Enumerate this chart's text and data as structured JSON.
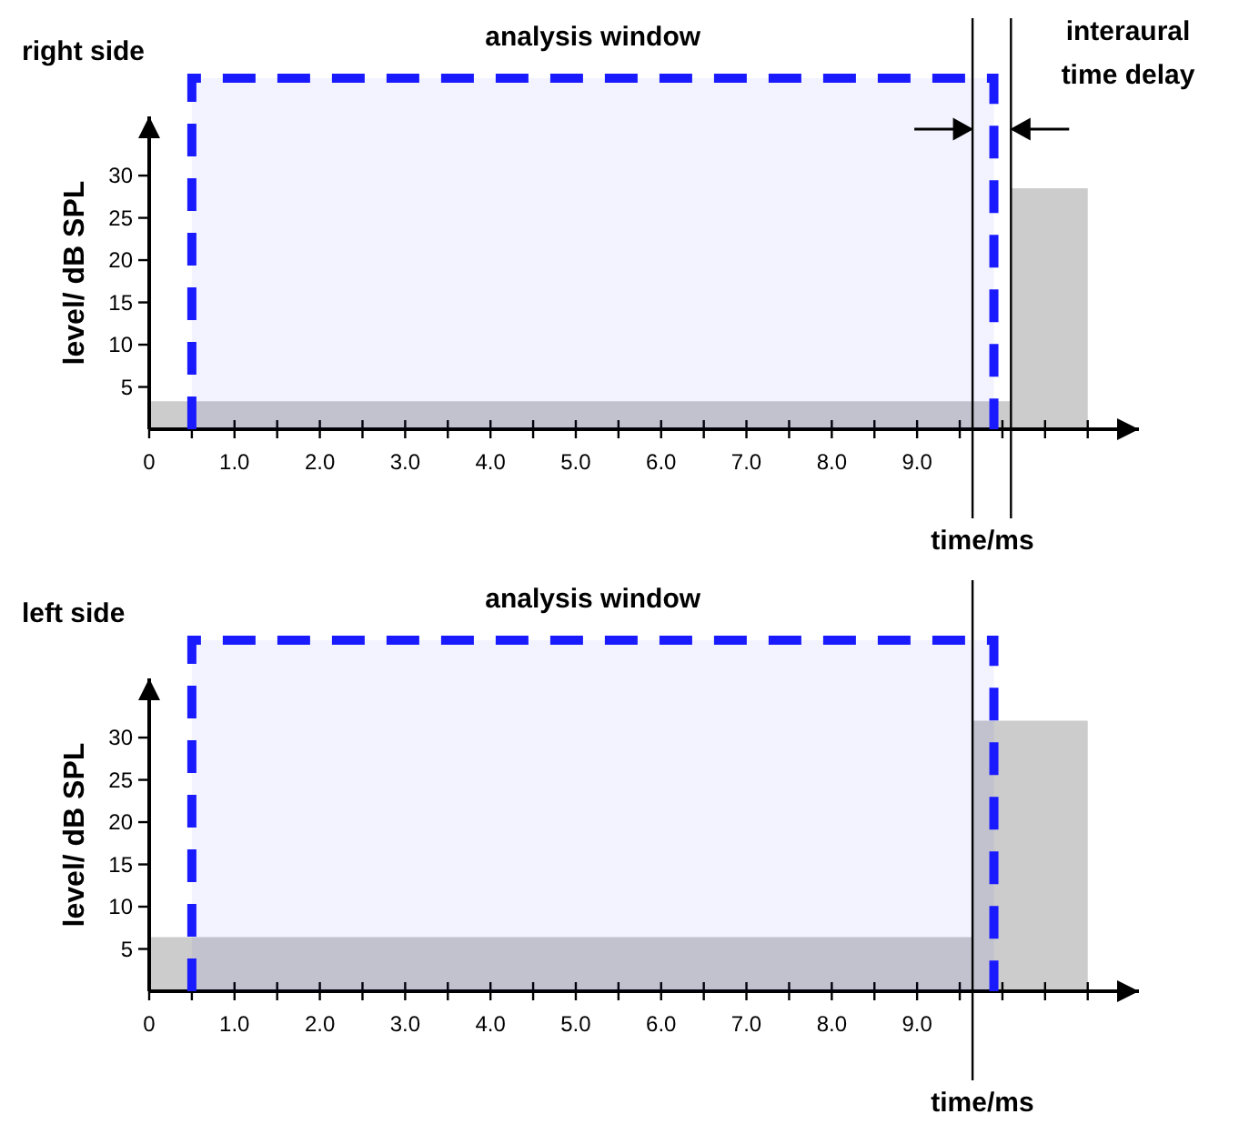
{
  "chart_data": [
    {
      "type": "area",
      "title": "right side",
      "xlabel": "time/ms",
      "ylabel": "level/ dB SPL",
      "x": [
        0,
        10.1,
        10.1,
        11
      ],
      "series": [
        {
          "color": "#cccccc",
          "values": [
            3.3,
            3.3,
            28.5,
            28.5
          ]
        }
      ],
      "xlim": [
        0,
        11.6
      ],
      "ylim": [
        0,
        37
      ],
      "xticks": [
        0,
        {
          "value": 0.5,
          "label": null
        },
        {
          "value": 1,
          "label": "1.0"
        },
        {
          "value": 1.5,
          "label": null
        },
        {
          "value": 2,
          "label": "2.0"
        },
        {
          "value": 2.5,
          "label": null
        },
        {
          "value": 3,
          "label": "3.0"
        },
        {
          "value": 3.5,
          "label": null
        },
        {
          "value": 4,
          "label": "4.0"
        },
        {
          "value": 4.5,
          "label": null
        },
        {
          "value": 5,
          "label": "5.0"
        },
        {
          "value": 5.5,
          "label": null
        },
        {
          "value": 6,
          "label": "6.0"
        },
        {
          "value": 6.5,
          "label": null
        },
        {
          "value": 7,
          "label": "7.0"
        },
        {
          "value": 7.5,
          "label": null
        },
        {
          "value": 8,
          "label": "8.0"
        },
        {
          "value": 8.5,
          "label": null
        },
        {
          "value": 9,
          "label": "9.0"
        },
        {
          "value": 9.5,
          "label": null
        },
        {
          "value": 10,
          "label": null
        },
        {
          "value": 10.5,
          "label": null
        },
        {
          "value": 11,
          "label": null
        }
      ],
      "yticks": [
        5,
        10,
        15,
        20,
        25,
        30
      ],
      "bands": [
        {
          "axis": "x",
          "from": 0.5,
          "to": 9.9,
          "label": "analysis window",
          "color": "#1a1aff"
        }
      ],
      "ref_lines": [
        {
          "axis": "x",
          "value": 9.65,
          "label": null,
          "color": "#000000"
        },
        {
          "axis": "x",
          "value": 10.1,
          "label": null,
          "color": "#000000"
        }
      ],
      "annotations": [
        "interaural time delay"
      ]
    },
    {
      "type": "area",
      "title": "left side",
      "xlabel": "time/ms",
      "ylabel": "level/ dB SPL",
      "x": [
        0,
        9.65,
        9.65,
        11
      ],
      "series": [
        {
          "color": "#cccccc",
          "values": [
            6.4,
            6.4,
            32,
            32
          ]
        }
      ],
      "xlim": [
        0,
        11.6
      ],
      "ylim": [
        0,
        37
      ],
      "xticks": [
        0,
        {
          "value": 0.5,
          "label": null
        },
        {
          "value": 1,
          "label": "1.0"
        },
        {
          "value": 1.5,
          "label": null
        },
        {
          "value": 2,
          "label": "2.0"
        },
        {
          "value": 2.5,
          "label": null
        },
        {
          "value": 3,
          "label": "3.0"
        },
        {
          "value": 3.5,
          "label": null
        },
        {
          "value": 4,
          "label": "4.0"
        },
        {
          "value": 4.5,
          "label": null
        },
        {
          "value": 5,
          "label": "5.0"
        },
        {
          "value": 5.5,
          "label": null
        },
        {
          "value": 6,
          "label": "6.0"
        },
        {
          "value": 6.5,
          "label": null
        },
        {
          "value": 7,
          "label": "7.0"
        },
        {
          "value": 7.5,
          "label": null
        },
        {
          "value": 8,
          "label": "8.0"
        },
        {
          "value": 8.5,
          "label": null
        },
        {
          "value": 9,
          "label": "9.0"
        },
        {
          "value": 9.5,
          "label": null
        },
        {
          "value": 10,
          "label": null
        },
        {
          "value": 10.5,
          "label": null
        },
        {
          "value": 11,
          "label": null
        }
      ],
      "yticks": [
        5,
        10,
        15,
        20,
        25,
        30
      ],
      "bands": [
        {
          "axis": "x",
          "from": 0.5,
          "to": 9.9,
          "label": "analysis window",
          "color": "#1a1aff"
        }
      ],
      "ref_lines": [
        {
          "axis": "x",
          "value": 9.65,
          "label": null,
          "color": "#000000"
        }
      ]
    }
  ]
}
